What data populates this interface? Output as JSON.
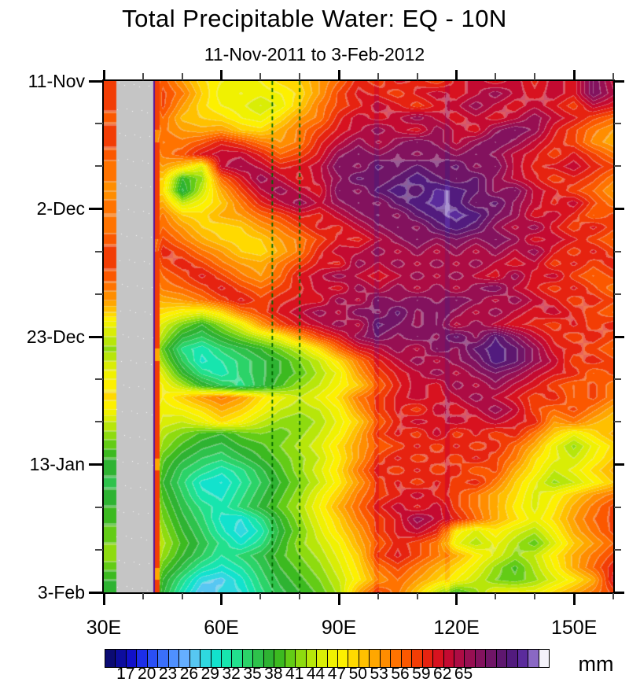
{
  "header": {
    "title": "Total Precipitable Water: EQ - 10N",
    "subtitle": "11-Nov-2011 to 3-Feb-2012"
  },
  "chart_data": {
    "type": "heatmap",
    "title": "Total Precipitable Water: EQ - 10N",
    "subtitle": "11-Nov-2011 to 3-Feb-2012",
    "x_axis": {
      "min": 30,
      "max": 160,
      "minor_step": 10,
      "major": [
        {
          "lon": 30,
          "label": "30E"
        },
        {
          "lon": 60,
          "label": "60E"
        },
        {
          "lon": 90,
          "label": "90E"
        },
        {
          "lon": 120,
          "label": "120E"
        },
        {
          "lon": 150,
          "label": "150E"
        }
      ]
    },
    "y_axis": {
      "total_days": 84,
      "minor_step": 7,
      "major": [
        {
          "day": 0,
          "label": "11-Nov"
        },
        {
          "day": 21,
          "label": "2-Dec"
        },
        {
          "day": 42,
          "label": "23-Dec"
        },
        {
          "day": 63,
          "label": "13-Jan"
        },
        {
          "day": 84,
          "label": "3-Feb"
        }
      ]
    },
    "colorbar": {
      "units": "mm",
      "min": 14,
      "step": 1.5,
      "labels": [
        17,
        20,
        23,
        26,
        29,
        32,
        35,
        38,
        41,
        44,
        47,
        50,
        53,
        56,
        59,
        62,
        65
      ],
      "palette": [
        "#0b0b73",
        "#0d0d9e",
        "#1111c8",
        "#1c2ee8",
        "#2a4ff5",
        "#3a6ffa",
        "#4f90ff",
        "#65aeff",
        "#57c7f2",
        "#2fd9e0",
        "#12e2cd",
        "#17e5ae",
        "#22e08d",
        "#2bd368",
        "#2ec24b",
        "#2eb332",
        "#3cba20",
        "#63cc16",
        "#8edb0f",
        "#b7e60a",
        "#d9ed06",
        "#f0f101",
        "#fdf000",
        "#ffd900",
        "#ffc000",
        "#ffa700",
        "#ff8d00",
        "#ff7300",
        "#fb5800",
        "#f23d05",
        "#e62310",
        "#d8121f",
        "#c40a31",
        "#ad0c44",
        "#970f52",
        "#83125e",
        "#701567",
        "#5e176f",
        "#521b7e",
        "#5b2b9c",
        "#8a68c4",
        "#f4f2fa"
      ]
    },
    "missing_band": {
      "lon_from": 33.2,
      "lon_to": 42.6,
      "color": "#c5c5c5"
    },
    "coast_stripe": {
      "lon_from": 42.9,
      "lon_to": 44.2,
      "edge_color": "#5a1496",
      "value": 58
    },
    "dashed_lines": {
      "lons": [
        73,
        80
      ],
      "color": "#006400"
    },
    "artifact_lons": [
      [
        99.1,
        100.3
      ],
      [
        117.2,
        118.4
      ]
    ],
    "grid": {
      "lon_start": 30,
      "lon_step": 5,
      "row_days": 2,
      "values": [
        [
          58,
          58,
          50,
          57,
          53,
          49,
          47,
          46,
          47,
          49,
          50,
          53,
          56,
          60,
          58,
          61,
          60,
          58,
          61,
          63,
          61,
          63,
          60,
          63,
          61,
          68,
          63
        ],
        [
          58,
          58,
          50,
          58,
          55,
          50,
          46,
          47,
          46,
          47,
          49,
          53,
          58,
          61,
          60,
          58,
          61,
          63,
          61,
          63,
          66,
          63,
          61,
          63,
          61,
          68,
          64
        ],
        [
          58,
          58,
          50,
          58,
          53,
          49,
          47,
          46,
          44,
          46,
          50,
          55,
          58,
          60,
          63,
          61,
          58,
          61,
          63,
          66,
          63,
          61,
          63,
          61,
          58,
          63,
          61
        ],
        [
          57,
          57,
          50,
          56,
          51,
          50,
          49,
          47,
          46,
          49,
          53,
          55,
          60,
          63,
          61,
          63,
          66,
          63,
          61,
          63,
          61,
          63,
          66,
          63,
          61,
          58,
          56
        ],
        [
          58,
          58,
          50,
          55,
          53,
          52,
          53,
          50,
          49,
          52,
          55,
          58,
          61,
          63,
          66,
          63,
          61,
          66,
          63,
          61,
          66,
          68,
          66,
          61,
          58,
          55,
          53
        ],
        [
          58,
          58,
          50,
          56,
          55,
          57,
          60,
          58,
          55,
          53,
          55,
          60,
          63,
          66,
          63,
          66,
          68,
          66,
          63,
          66,
          68,
          66,
          63,
          60,
          58,
          54,
          52
        ],
        [
          57,
          57,
          50,
          55,
          57,
          61,
          63,
          63,
          60,
          56,
          58,
          61,
          66,
          68,
          66,
          68,
          66,
          68,
          66,
          68,
          66,
          63,
          61,
          58,
          61,
          58,
          55
        ],
        [
          55,
          55,
          50,
          53,
          50,
          45,
          63,
          65,
          63,
          60,
          61,
          63,
          68,
          66,
          70,
          68,
          70,
          68,
          70,
          66,
          68,
          63,
          60,
          61,
          63,
          60,
          58
        ],
        [
          55,
          55,
          50,
          50,
          38,
          42,
          56,
          61,
          66,
          63,
          60,
          63,
          66,
          70,
          68,
          70,
          72,
          70,
          68,
          70,
          66,
          63,
          61,
          58,
          60,
          58,
          55
        ],
        [
          53,
          53,
          50,
          49,
          36,
          44,
          52,
          58,
          63,
          66,
          63,
          61,
          68,
          66,
          70,
          72,
          70,
          73,
          72,
          70,
          66,
          68,
          63,
          61,
          58,
          56,
          53
        ],
        [
          55,
          55,
          50,
          52,
          44,
          47,
          50,
          55,
          60,
          63,
          66,
          63,
          66,
          68,
          66,
          70,
          72,
          73,
          72,
          68,
          70,
          66,
          63,
          60,
          63,
          58,
          55
        ],
        [
          56,
          56,
          50,
          55,
          50,
          49,
          52,
          53,
          56,
          58,
          61,
          60,
          63,
          66,
          68,
          66,
          70,
          72,
          73,
          72,
          68,
          66,
          61,
          63,
          60,
          56,
          58
        ],
        [
          55,
          55,
          50,
          56,
          53,
          50,
          49,
          50,
          53,
          55,
          58,
          61,
          60,
          63,
          66,
          68,
          66,
          70,
          72,
          70,
          66,
          63,
          66,
          61,
          58,
          61,
          58
        ],
        [
          57,
          57,
          50,
          58,
          55,
          52,
          50,
          49,
          50,
          53,
          55,
          58,
          61,
          60,
          63,
          66,
          68,
          66,
          68,
          66,
          68,
          66,
          61,
          63,
          61,
          58,
          56
        ],
        [
          58,
          58,
          50,
          60,
          58,
          55,
          53,
          50,
          49,
          52,
          55,
          60,
          63,
          63,
          66,
          63,
          66,
          63,
          66,
          63,
          66,
          63,
          66,
          61,
          58,
          61,
          58
        ],
        [
          58,
          58,
          50,
          58,
          60,
          58,
          55,
          53,
          52,
          55,
          58,
          61,
          60,
          66,
          63,
          66,
          63,
          66,
          63,
          66,
          63,
          61,
          63,
          58,
          61,
          58,
          60
        ],
        [
          57,
          57,
          50,
          56,
          58,
          61,
          58,
          55,
          53,
          56,
          61,
          63,
          66,
          63,
          61,
          63,
          66,
          63,
          66,
          63,
          61,
          66,
          61,
          63,
          58,
          56,
          58
        ],
        [
          55,
          55,
          50,
          55,
          56,
          58,
          61,
          58,
          56,
          58,
          60,
          63,
          61,
          66,
          63,
          66,
          63,
          66,
          63,
          66,
          68,
          63,
          61,
          58,
          61,
          58,
          55
        ],
        [
          53,
          53,
          50,
          52,
          53,
          55,
          58,
          61,
          58,
          60,
          61,
          61,
          66,
          63,
          68,
          66,
          68,
          66,
          68,
          66,
          63,
          66,
          63,
          61,
          58,
          60,
          58
        ],
        [
          50,
          50,
          50,
          49,
          47,
          46,
          49,
          55,
          58,
          61,
          63,
          66,
          63,
          68,
          66,
          70,
          66,
          68,
          66,
          63,
          66,
          63,
          61,
          63,
          60,
          58,
          56
        ],
        [
          46,
          46,
          50,
          45,
          41,
          38,
          42,
          46,
          53,
          58,
          61,
          63,
          66,
          63,
          70,
          68,
          66,
          68,
          63,
          66,
          63,
          61,
          60,
          58,
          61,
          58,
          60
        ],
        [
          44,
          44,
          50,
          43,
          37,
          35,
          38,
          41,
          44,
          47,
          53,
          58,
          61,
          66,
          68,
          66,
          68,
          66,
          70,
          66,
          71,
          67,
          63,
          60,
          58,
          60,
          58
        ],
        [
          42,
          42,
          50,
          40,
          33,
          31,
          34,
          36,
          38,
          41,
          44,
          49,
          56,
          61,
          63,
          66,
          63,
          68,
          66,
          70,
          72,
          70,
          66,
          61,
          60,
          58,
          56
        ],
        [
          44,
          44,
          50,
          42,
          35,
          30,
          32,
          34,
          36,
          38,
          41,
          44,
          49,
          55,
          60,
          63,
          66,
          63,
          66,
          68,
          72,
          70,
          66,
          63,
          58,
          60,
          58
        ],
        [
          46,
          46,
          50,
          45,
          38,
          33,
          31,
          34,
          36,
          38,
          40,
          43,
          46,
          53,
          58,
          61,
          63,
          66,
          63,
          66,
          68,
          66,
          63,
          61,
          60,
          56,
          58
        ],
        [
          48,
          48,
          50,
          47,
          43,
          38,
          35,
          33,
          36,
          39,
          42,
          44,
          47,
          50,
          56,
          60,
          63,
          61,
          66,
          63,
          66,
          63,
          61,
          58,
          56,
          58,
          55
        ],
        [
          49,
          49,
          50,
          47,
          50,
          53,
          55,
          53,
          49,
          46,
          44,
          46,
          49,
          55,
          58,
          61,
          63,
          61,
          63,
          66,
          63,
          61,
          58,
          60,
          56,
          58,
          55
        ],
        [
          47,
          47,
          50,
          46,
          47,
          49,
          52,
          50,
          47,
          44,
          43,
          44,
          47,
          53,
          58,
          61,
          58,
          63,
          61,
          63,
          66,
          63,
          58,
          56,
          58,
          55,
          52
        ],
        [
          44,
          44,
          50,
          45,
          44,
          46,
          49,
          47,
          44,
          42,
          41,
          43,
          46,
          50,
          56,
          60,
          63,
          61,
          63,
          61,
          63,
          61,
          60,
          53,
          55,
          52,
          50
        ],
        [
          42,
          42,
          50,
          43,
          41,
          39,
          38,
          40,
          41,
          40,
          42,
          44,
          47,
          52,
          58,
          61,
          58,
          63,
          58,
          61,
          58,
          60,
          55,
          50,
          46,
          49,
          52
        ],
        [
          40,
          40,
          50,
          42,
          39,
          37,
          36,
          38,
          39,
          41,
          43,
          45,
          49,
          53,
          56,
          58,
          61,
          58,
          61,
          58,
          60,
          56,
          52,
          46,
          42,
          46,
          49
        ],
        [
          38,
          38,
          50,
          40,
          37,
          35,
          34,
          36,
          38,
          40,
          42,
          44,
          48,
          53,
          58,
          61,
          58,
          60,
          58,
          61,
          58,
          55,
          49,
          46,
          44,
          47,
          50
        ],
        [
          37,
          37,
          50,
          39,
          35,
          33,
          31,
          33,
          36,
          39,
          42,
          45,
          49,
          55,
          60,
          58,
          61,
          58,
          60,
          56,
          58,
          52,
          48,
          44,
          46,
          49,
          52
        ],
        [
          36,
          36,
          50,
          38,
          34,
          30,
          29,
          32,
          35,
          38,
          41,
          44,
          48,
          53,
          58,
          61,
          58,
          61,
          58,
          60,
          55,
          50,
          46,
          42,
          44,
          47,
          50
        ],
        [
          37,
          37,
          50,
          39,
          35,
          31,
          30,
          33,
          36,
          39,
          42,
          46,
          50,
          55,
          58,
          60,
          63,
          60,
          58,
          55,
          52,
          49,
          45,
          47,
          50,
          53,
          55
        ],
        [
          38,
          38,
          50,
          40,
          36,
          33,
          31,
          34,
          37,
          40,
          43,
          47,
          52,
          56,
          60,
          63,
          60,
          63,
          58,
          55,
          52,
          48,
          45,
          48,
          52,
          55,
          58
        ],
        [
          39,
          39,
          50,
          41,
          37,
          34,
          30,
          29,
          33,
          38,
          42,
          46,
          50,
          55,
          58,
          61,
          66,
          63,
          60,
          56,
          52,
          49,
          46,
          49,
          53,
          56,
          58
        ],
        [
          40,
          40,
          50,
          42,
          38,
          35,
          31,
          28,
          31,
          37,
          41,
          45,
          49,
          53,
          58,
          61,
          63,
          60,
          48,
          45,
          48,
          45,
          43,
          47,
          52,
          55,
          58
        ],
        [
          41,
          41,
          50,
          43,
          39,
          36,
          33,
          30,
          33,
          38,
          42,
          44,
          47,
          52,
          56,
          60,
          58,
          55,
          46,
          43,
          46,
          43,
          40,
          45,
          50,
          53,
          56
        ],
        [
          42,
          42,
          50,
          42,
          38,
          35,
          32,
          34,
          36,
          39,
          41,
          43,
          46,
          50,
          58,
          61,
          58,
          55,
          52,
          48,
          45,
          42,
          44,
          48,
          52,
          55,
          58
        ],
        [
          40,
          40,
          50,
          40,
          36,
          32,
          30,
          32,
          35,
          38,
          40,
          42,
          45,
          49,
          55,
          58,
          55,
          52,
          49,
          46,
          42,
          39,
          43,
          47,
          52,
          56,
          60
        ],
        [
          38,
          38,
          50,
          38,
          33,
          28,
          27,
          30,
          34,
          37,
          39,
          41,
          44,
          48,
          53,
          56,
          53,
          50,
          47,
          44,
          41,
          40,
          42,
          45,
          48,
          52,
          61
        ],
        [
          37,
          37,
          50,
          37,
          31,
          26,
          28,
          29,
          33,
          36,
          38,
          40,
          43,
          52,
          58,
          55,
          50,
          44,
          39,
          42,
          46,
          46,
          46,
          49,
          52,
          55,
          58
        ]
      ]
    }
  }
}
